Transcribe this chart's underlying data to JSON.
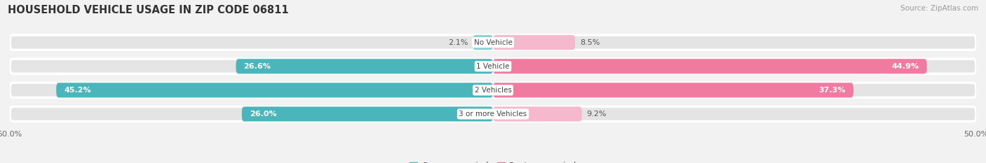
{
  "title": "HOUSEHOLD VEHICLE USAGE IN ZIP CODE 06811",
  "source": "Source: ZipAtlas.com",
  "categories": [
    "No Vehicle",
    "1 Vehicle",
    "2 Vehicles",
    "3 or more Vehicles"
  ],
  "owner_values": [
    2.1,
    26.6,
    45.2,
    26.0
  ],
  "renter_values": [
    8.5,
    44.9,
    37.3,
    9.2
  ],
  "owner_color_full": "#4ab5ba",
  "owner_color_light": "#8dd0d4",
  "renter_color_full": "#f07aa0",
  "renter_color_light": "#f5b8cc",
  "background_color": "#f2f2f2",
  "bar_bg_color": "#e4e4e4",
  "xlim": [
    -50,
    50
  ],
  "xticklabels": [
    "50.0%",
    "50.0%"
  ],
  "title_fontsize": 10.5,
  "source_fontsize": 7.5,
  "label_fontsize": 8,
  "legend_fontsize": 8.5,
  "category_fontsize": 7.5
}
